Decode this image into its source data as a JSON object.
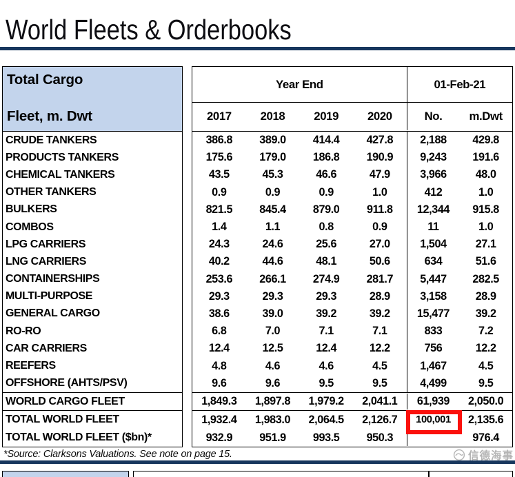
{
  "title": "World Fleets & Orderbooks",
  "table": {
    "corner": {
      "line1": "Total Cargo",
      "line2": "Fleet, m. Dwt"
    },
    "group_headers": {
      "year_end": "Year End",
      "snapshot_date": "01-Feb-21"
    },
    "columns": [
      "2017",
      "2018",
      "2019",
      "2020",
      "No.",
      "m.Dwt"
    ],
    "rows": [
      {
        "label": "CRUDE TANKERS",
        "values": [
          "386.8",
          "389.0",
          "414.4",
          "427.8",
          "2,188",
          "429.8"
        ]
      },
      {
        "label": "PRODUCTS TANKERS",
        "values": [
          "175.6",
          "179.0",
          "186.8",
          "190.9",
          "9,243",
          "191.6"
        ]
      },
      {
        "label": "CHEMICAL TANKERS",
        "values": [
          "43.5",
          "45.3",
          "46.6",
          "47.9",
          "3,966",
          "48.0"
        ]
      },
      {
        "label": "OTHER TANKERS",
        "values": [
          "0.9",
          "0.9",
          "0.9",
          "1.0",
          "412",
          "1.0"
        ]
      },
      {
        "label": "BULKERS",
        "values": [
          "821.5",
          "845.4",
          "879.0",
          "911.8",
          "12,344",
          "915.8"
        ]
      },
      {
        "label": "COMBOS",
        "values": [
          "1.4",
          "1.1",
          "0.8",
          "0.9",
          "11",
          "1.0"
        ]
      },
      {
        "label": "LPG CARRIERS",
        "values": [
          "24.3",
          "24.6",
          "25.6",
          "27.0",
          "1,504",
          "27.1"
        ]
      },
      {
        "label": "LNG CARRIERS",
        "values": [
          "40.2",
          "44.6",
          "48.1",
          "50.6",
          "634",
          "51.6"
        ]
      },
      {
        "label": "CONTAINERSHIPS",
        "values": [
          "253.6",
          "266.1",
          "274.9",
          "281.7",
          "5,447",
          "282.5"
        ]
      },
      {
        "label": "MULTI-PURPOSE",
        "values": [
          "29.3",
          "29.3",
          "29.3",
          "28.9",
          "3,158",
          "28.9"
        ]
      },
      {
        "label": "GENERAL CARGO",
        "values": [
          "38.6",
          "39.0",
          "39.2",
          "39.2",
          "15,477",
          "39.2"
        ]
      },
      {
        "label": "RO-RO",
        "values": [
          "6.8",
          "7.0",
          "7.1",
          "7.1",
          "833",
          "7.2"
        ]
      },
      {
        "label": "CAR CARRIERS",
        "values": [
          "12.4",
          "12.5",
          "12.4",
          "12.2",
          "756",
          "12.2"
        ]
      },
      {
        "label": "REEFERS",
        "values": [
          "4.8",
          "4.6",
          "4.6",
          "4.5",
          "1,467",
          "4.5"
        ]
      },
      {
        "label": "OFFSHORE (AHTS/PSV)",
        "values": [
          "9.6",
          "9.6",
          "9.5",
          "9.5",
          "4,499",
          "9.5"
        ]
      }
    ],
    "summary": {
      "cargo": {
        "label": "WORLD CARGO FLEET",
        "values": [
          "1,849.3",
          "1,897.8",
          "1,979.2",
          "2,041.1",
          "61,939",
          "2,050.0"
        ]
      },
      "total": {
        "label": "TOTAL WORLD FLEET",
        "values": [
          "1,932.4",
          "1,983.0",
          "2,064.5",
          "2,126.7",
          "100,001",
          "2,135.6"
        ],
        "highlighted_column": "No.",
        "highlighted_value": "100,001"
      },
      "total_bn": {
        "label": "TOTAL WORLD FLEET ($bn)*",
        "values": [
          "932.9",
          "951.9",
          "993.5",
          "950.3",
          "",
          "976.4"
        ]
      }
    }
  },
  "footer": {
    "source_note": "*Source: Clarksons Valuations. See note on page 15.",
    "watermark_text": "信德海事"
  },
  "colors": {
    "accent_navy": "#17365d",
    "header_blue": "#c3d4ec",
    "highlight_red": "#fb100c",
    "border_black": "#000000",
    "watermark_gray": "#b5b5b5"
  }
}
